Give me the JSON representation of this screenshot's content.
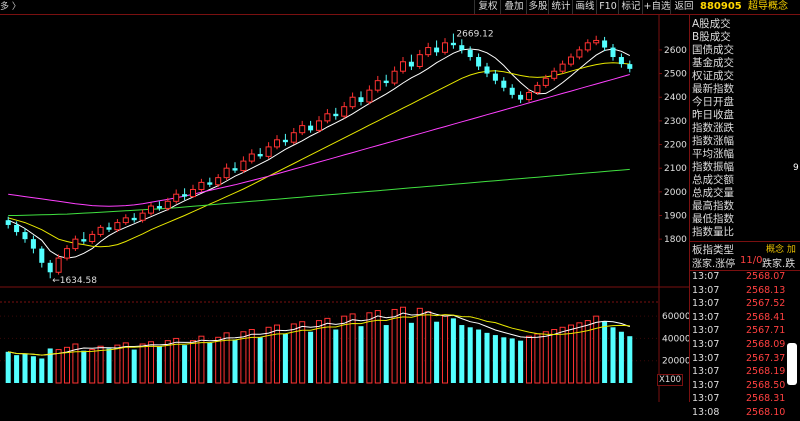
{
  "toolbar": {
    "left_text": "多 〉",
    "buttons": [
      "复权",
      "叠加",
      "多股",
      "统计",
      "画线",
      "F10",
      "标记",
      "+自选",
      "返回"
    ],
    "stock_code": "880905",
    "stock_name": "超导概念"
  },
  "price_axis": {
    "labels": [
      "2600",
      "2500",
      "2400",
      "2300",
      "2200",
      "2100",
      "2000",
      "1900",
      "1800"
    ]
  },
  "volume_axis": {
    "labels": [
      "60000",
      "40000",
      "20000"
    ],
    "unit": "X100"
  },
  "chart_annotations": {
    "high_label": "2669.12",
    "low_label": "←1634.58"
  },
  "chart_data": {
    "type": "candlestick",
    "price_range": [
      1640,
      2680
    ],
    "volume_range": [
      0,
      70000
    ],
    "high_point": 2669.12,
    "low_point": 1634.58,
    "candles": [
      [
        1880,
        1860,
        1895,
        1845,
        28000
      ],
      [
        1860,
        1830,
        1875,
        1815,
        25000
      ],
      [
        1830,
        1800,
        1845,
        1785,
        26000
      ],
      [
        1800,
        1760,
        1815,
        1740,
        24000
      ],
      [
        1760,
        1700,
        1770,
        1680,
        22000
      ],
      [
        1700,
        1660,
        1712,
        1634.58,
        31000
      ],
      [
        1660,
        1720,
        1735,
        1650,
        30000
      ],
      [
        1720,
        1760,
        1775,
        1710,
        32000
      ],
      [
        1760,
        1800,
        1815,
        1750,
        35000
      ],
      [
        1800,
        1790,
        1830,
        1780,
        29000
      ],
      [
        1790,
        1820,
        1835,
        1780,
        30000
      ],
      [
        1820,
        1850,
        1860,
        1810,
        33000
      ],
      [
        1850,
        1840,
        1870,
        1830,
        31000
      ],
      [
        1840,
        1870,
        1885,
        1830,
        34000
      ],
      [
        1870,
        1890,
        1905,
        1860,
        36000
      ],
      [
        1890,
        1880,
        1910,
        1870,
        30000
      ],
      [
        1880,
        1910,
        1925,
        1870,
        35000
      ],
      [
        1910,
        1940,
        1955,
        1900,
        37000
      ],
      [
        1940,
        1930,
        1960,
        1920,
        33000
      ],
      [
        1930,
        1960,
        1975,
        1920,
        38000
      ],
      [
        1960,
        1990,
        2010,
        1950,
        40000
      ],
      [
        1990,
        1980,
        2015,
        1965,
        34000
      ],
      [
        1980,
        2010,
        2030,
        1975,
        38000
      ],
      [
        2010,
        2040,
        2055,
        2000,
        42000
      ],
      [
        2040,
        2030,
        2060,
        2020,
        36000
      ],
      [
        2030,
        2060,
        2075,
        2020,
        41000
      ],
      [
        2060,
        2100,
        2120,
        2050,
        45000
      ],
      [
        2100,
        2090,
        2125,
        2080,
        39000
      ],
      [
        2090,
        2130,
        2150,
        2080,
        46000
      ],
      [
        2130,
        2160,
        2180,
        2120,
        48000
      ],
      [
        2160,
        2150,
        2185,
        2140,
        41000
      ],
      [
        2150,
        2190,
        2210,
        2140,
        50000
      ],
      [
        2190,
        2220,
        2240,
        2180,
        52000
      ],
      [
        2220,
        2210,
        2245,
        2195,
        44000
      ],
      [
        2210,
        2250,
        2270,
        2200,
        53000
      ],
      [
        2250,
        2280,
        2300,
        2240,
        55000
      ],
      [
        2280,
        2260,
        2300,
        2250,
        46000
      ],
      [
        2260,
        2300,
        2320,
        2250,
        56000
      ],
      [
        2300,
        2330,
        2350,
        2290,
        58000
      ],
      [
        2330,
        2320,
        2355,
        2305,
        48000
      ],
      [
        2320,
        2360,
        2380,
        2310,
        60000
      ],
      [
        2360,
        2400,
        2420,
        2350,
        62000
      ],
      [
        2400,
        2380,
        2425,
        2365,
        51000
      ],
      [
        2380,
        2430,
        2450,
        2370,
        63000
      ],
      [
        2430,
        2470,
        2490,
        2420,
        65000
      ],
      [
        2470,
        2460,
        2495,
        2445,
        52000
      ],
      [
        2460,
        2510,
        2530,
        2450,
        66000
      ],
      [
        2510,
        2550,
        2570,
        2500,
        68000
      ],
      [
        2550,
        2530,
        2580,
        2515,
        54000
      ],
      [
        2530,
        2580,
        2600,
        2520,
        67000
      ],
      [
        2580,
        2610,
        2630,
        2570,
        64000
      ],
      [
        2610,
        2590,
        2640,
        2575,
        55000
      ],
      [
        2590,
        2630,
        2650,
        2580,
        60000
      ],
      [
        2630,
        2620,
        2669.12,
        2605,
        58000
      ],
      [
        2620,
        2600,
        2645,
        2585,
        52000
      ],
      [
        2600,
        2570,
        2615,
        2555,
        50000
      ],
      [
        2570,
        2530,
        2585,
        2515,
        48000
      ],
      [
        2530,
        2500,
        2545,
        2485,
        45000
      ],
      [
        2500,
        2470,
        2515,
        2455,
        43000
      ],
      [
        2470,
        2440,
        2485,
        2425,
        41000
      ],
      [
        2440,
        2410,
        2455,
        2395,
        40000
      ],
      [
        2410,
        2390,
        2425,
        2375,
        38000
      ],
      [
        2390,
        2420,
        2435,
        2380,
        42000
      ],
      [
        2420,
        2450,
        2465,
        2410,
        44000
      ],
      [
        2450,
        2480,
        2495,
        2440,
        46000
      ],
      [
        2480,
        2510,
        2525,
        2470,
        48000
      ],
      [
        2510,
        2540,
        2555,
        2500,
        50000
      ],
      [
        2540,
        2570,
        2585,
        2530,
        52000
      ],
      [
        2570,
        2600,
        2615,
        2560,
        54000
      ],
      [
        2600,
        2630,
        2645,
        2590,
        56000
      ],
      [
        2630,
        2640,
        2660,
        2620,
        60000
      ],
      [
        2640,
        2610,
        2655,
        2595,
        55000
      ],
      [
        2610,
        2570,
        2625,
        2555,
        50000
      ],
      [
        2570,
        2540,
        2585,
        2525,
        46000
      ],
      [
        2540,
        2520,
        2555,
        2505,
        42000
      ]
    ],
    "ma_lines": [
      {
        "name": "MA5",
        "color": "#ffffff",
        "values": [
          1880,
          1865,
          1845,
          1820,
          1795,
          1750,
          1728,
          1720,
          1725,
          1740,
          1760,
          1790,
          1815,
          1835,
          1850,
          1865,
          1880,
          1895,
          1910,
          1925,
          1945,
          1962,
          1978,
          1994,
          2010,
          2026,
          2046,
          2066,
          2082,
          2100,
          2118,
          2136,
          2158,
          2180,
          2198,
          2216,
          2236,
          2254,
          2274,
          2292,
          2310,
          2330,
          2352,
          2374,
          2394,
          2414,
          2436,
          2460,
          2482,
          2500,
          2522,
          2546,
          2566,
          2586,
          2600,
          2604,
          2600,
          2588,
          2566,
          2534,
          2496,
          2462,
          2432,
          2414,
          2416,
          2436,
          2462,
          2490,
          2520,
          2550,
          2578,
          2598,
          2604,
          2594,
          2576
        ]
      },
      {
        "name": "MA10",
        "color": "#e8e800",
        "values": [
          1890,
          1880,
          1870,
          1855,
          1840,
          1820,
          1800,
          1790,
          1782,
          1777,
          1770,
          1768,
          1770,
          1777,
          1790,
          1806,
          1822,
          1840,
          1855,
          1870,
          1885,
          1900,
          1916,
          1932,
          1948,
          1964,
          1980,
          1996,
          2012,
          2030,
          2048,
          2066,
          2084,
          2102,
          2120,
          2138,
          2156,
          2174,
          2192,
          2210,
          2228,
          2246,
          2264,
          2282,
          2300,
          2318,
          2336,
          2354,
          2372,
          2390,
          2408,
          2426,
          2444,
          2462,
          2480,
          2494,
          2504,
          2510,
          2512,
          2508,
          2500,
          2492,
          2486,
          2484,
          2486,
          2492,
          2500,
          2510,
          2520,
          2530,
          2538,
          2544,
          2546,
          2544,
          2540
        ]
      },
      {
        "name": "MA20",
        "color": "#ff40ff",
        "values": [
          1990,
          1985,
          1980,
          1975,
          1970,
          1965,
          1960,
          1955,
          1950,
          1946,
          1942,
          1940,
          1939,
          1940,
          1942,
          1945,
          1950,
          1956,
          1962,
          1968,
          1975,
          1982,
          1990,
          1998,
          2006,
          2014,
          2022,
          2030,
          2039,
          2048,
          2057,
          2066,
          2076,
          2086,
          2096,
          2106,
          2116,
          2126,
          2136,
          2146,
          2156,
          2166,
          2176,
          2186,
          2196,
          2206,
          2216,
          2226,
          2236,
          2246,
          2256,
          2266,
          2276,
          2286,
          2296,
          2306,
          2316,
          2326,
          2336,
          2346,
          2356,
          2366,
          2376,
          2386,
          2396,
          2406,
          2416,
          2426,
          2436,
          2446,
          2456,
          2466,
          2476,
          2486,
          2496
        ]
      },
      {
        "name": "MA60",
        "color": "#40e040",
        "values": [
          1900,
          1900,
          1901,
          1902,
          1903,
          1904,
          1905,
          1906,
          1908,
          1910,
          1912,
          1914,
          1916,
          1918,
          1920,
          1922,
          1924,
          1926,
          1928,
          1930,
          1933,
          1936,
          1939,
          1942,
          1945,
          1948,
          1951,
          1954,
          1957,
          1960,
          1963,
          1966,
          1969,
          1972,
          1975,
          1978,
          1981,
          1984,
          1987,
          1990,
          1993,
          1996,
          1999,
          2002,
          2005,
          2008,
          2011,
          2014,
          2017,
          2020,
          2023,
          2026,
          2029,
          2032,
          2035,
          2038,
          2041,
          2044,
          2047,
          2050,
          2053,
          2056,
          2059,
          2062,
          2065,
          2068,
          2071,
          2074,
          2077,
          2080,
          2083,
          2086,
          2089,
          2092,
          2095
        ]
      }
    ]
  },
  "panel": {
    "fields": [
      "A股成交",
      "B股成交",
      "国债成交",
      "基金成交",
      "权证成交",
      "最新指数",
      "今日开盘",
      "昨日收盘",
      "指数涨跌",
      "指数涨幅",
      "平均涨幅",
      "指数振幅",
      "总成交额",
      "总成交量",
      "最高指数",
      "最低指数",
      "指数量比"
    ],
    "sector_label": "板指类型",
    "sector_value": "概念 加",
    "stat_left": "涨家.涨停",
    "stat_mid": "11/0",
    "stat_right": "跌家.跌",
    "ticks": [
      {
        "time": "13:07",
        "price": "2568.07"
      },
      {
        "time": "13:07",
        "price": "2568.13"
      },
      {
        "time": "13:07",
        "price": "2567.52"
      },
      {
        "time": "13:07",
        "price": "2568.41"
      },
      {
        "time": "13:07",
        "price": "2567.71"
      },
      {
        "time": "13:07",
        "price": "2568.09"
      },
      {
        "time": "13:07",
        "price": "2567.37"
      },
      {
        "time": "13:07",
        "price": "2568.19"
      },
      {
        "time": "13:07",
        "price": "2568.50"
      },
      {
        "time": "13:07",
        "price": "2568.31"
      },
      {
        "time": "13:08",
        "price": "2568.10"
      }
    ],
    "side_marker": "9"
  }
}
